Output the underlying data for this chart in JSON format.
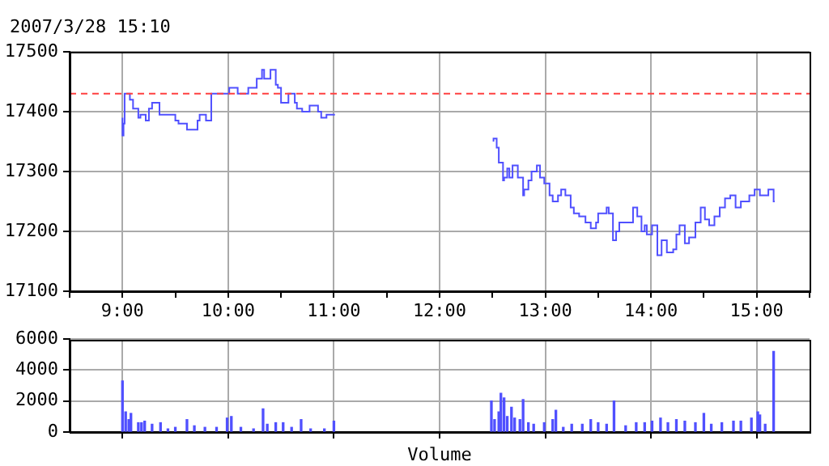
{
  "chart_data": [
    {
      "type": "step",
      "subtitle": "2007/3/28 15:10",
      "x": [
        9.0,
        9.01,
        9.02,
        9.07,
        9.1,
        9.15,
        9.17,
        9.22,
        9.25,
        9.28,
        9.35,
        9.38,
        9.45,
        9.5,
        9.53,
        9.61,
        9.71,
        9.73,
        9.79,
        9.84,
        10.01,
        10.09,
        10.19,
        10.27,
        10.32,
        10.34,
        10.4,
        10.45,
        10.47,
        10.5,
        10.52,
        10.57,
        10.63,
        10.65,
        10.7,
        10.77,
        10.85,
        10.88,
        10.93,
        11.01,
        11.75,
        12.51,
        12.54,
        12.56,
        12.6,
        12.61,
        12.64,
        12.66,
        12.69,
        12.74,
        12.79,
        12.8,
        12.84,
        12.87,
        12.92,
        12.95,
        12.99,
        13.04,
        13.07,
        13.12,
        13.15,
        13.19,
        13.24,
        13.27,
        13.32,
        13.38,
        13.43,
        13.48,
        13.5,
        13.58,
        13.6,
        13.64,
        13.67,
        13.7,
        13.76,
        13.83,
        13.87,
        13.91,
        13.94,
        13.96,
        14.01,
        14.06,
        14.1,
        14.15,
        14.21,
        14.24,
        14.27,
        14.32,
        14.36,
        14.42,
        14.47,
        14.51,
        14.55,
        14.6,
        14.65,
        14.7,
        14.75,
        14.8,
        14.85,
        14.93,
        14.98,
        15.03,
        15.11,
        15.16,
        15.17
      ],
      "series": [
        {
          "color": "#5050ff",
          "values": [
            17390,
            17360,
            17380,
            17430,
            17420,
            17405,
            17390,
            17395,
            17385,
            17405,
            17415,
            17395,
            17395,
            17395,
            17385,
            17380,
            17370,
            17385,
            17395,
            17385,
            17430,
            17440,
            17430,
            17440,
            17455,
            17470,
            17455,
            17470,
            17445,
            17440,
            17415,
            17415,
            17430,
            17415,
            17405,
            17400,
            17410,
            17400,
            17390,
            17395,
            null,
            17350,
            17355,
            17340,
            17315,
            17285,
            17290,
            17305,
            17290,
            17310,
            17290,
            17260,
            17270,
            17285,
            17300,
            17310,
            17290,
            17280,
            17260,
            17250,
            17260,
            17270,
            17260,
            17240,
            17230,
            17225,
            17215,
            17205,
            17215,
            17230,
            17240,
            17230,
            17185,
            17200,
            17215,
            17215,
            17240,
            17225,
            17200,
            17210,
            17195,
            17210,
            17160,
            17185,
            17165,
            17170,
            17195,
            17210,
            17180,
            17190,
            17215,
            17240,
            17220,
            17210,
            17225,
            17240,
            17255,
            17260,
            17240,
            17250,
            17260,
            17270,
            17260,
            17270,
            17250
          ]
        }
      ],
      "xlim": [
        8.5,
        15.5
      ],
      "ylim": [
        17100,
        17500
      ],
      "xticks": [
        {
          "value": 8.5,
          "label": null
        },
        {
          "value": 9,
          "label": "9:00"
        },
        {
          "value": 9.5,
          "label": null
        },
        {
          "value": 10,
          "label": "10:00"
        },
        {
          "value": 10.5,
          "label": null
        },
        {
          "value": 11,
          "label": "11:00"
        },
        {
          "value": 11.5,
          "label": null
        },
        {
          "value": 12,
          "label": "12:00"
        },
        {
          "value": 12.5,
          "label": null
        },
        {
          "value": 13,
          "label": "13:00"
        },
        {
          "value": 13.5,
          "label": null
        },
        {
          "value": 14,
          "label": "14:00"
        },
        {
          "value": 14.5,
          "label": null
        },
        {
          "value": 15,
          "label": "15:00"
        },
        {
          "value": 15.5,
          "label": null
        }
      ],
      "yticks": [
        17100,
        17200,
        17300,
        17400,
        17500
      ],
      "ref_lines": [
        {
          "axis": "y",
          "value": 17430,
          "color": "#ff4040",
          "line_style": "dashed"
        }
      ],
      "grid": true,
      "legend": false
    },
    {
      "type": "bar",
      "xlabel": "Volume",
      "x": [
        9.0,
        9.03,
        9.06,
        9.08,
        9.15,
        9.18,
        9.21,
        9.28,
        9.36,
        9.43,
        9.5,
        9.61,
        9.68,
        9.78,
        9.89,
        9.99,
        10.03,
        10.12,
        10.24,
        10.33,
        10.37,
        10.45,
        10.52,
        10.6,
        10.69,
        10.78,
        10.91,
        11.0,
        12.49,
        12.52,
        12.56,
        12.58,
        12.61,
        12.64,
        12.68,
        12.71,
        12.76,
        12.79,
        12.84,
        12.89,
        12.99,
        13.07,
        13.1,
        13.17,
        13.25,
        13.35,
        13.43,
        13.5,
        13.58,
        13.65,
        13.76,
        13.86,
        13.94,
        14.01,
        14.09,
        14.16,
        14.24,
        14.32,
        14.42,
        14.5,
        14.57,
        14.67,
        14.78,
        14.85,
        14.95,
        15.01,
        15.03,
        15.08,
        15.16
      ],
      "series": [
        {
          "color": "#5050ff",
          "values": [
            3300,
            1300,
            800,
            1200,
            600,
            600,
            700,
            500,
            600,
            200,
            300,
            800,
            400,
            300,
            300,
            900,
            1000,
            300,
            200,
            1500,
            500,
            600,
            600,
            300,
            800,
            200,
            200,
            700,
            2000,
            800,
            1300,
            2500,
            2200,
            1000,
            1600,
            900,
            800,
            2100,
            600,
            500,
            600,
            800,
            1400,
            300,
            500,
            500,
            800,
            600,
            500,
            2000,
            400,
            600,
            600,
            700,
            900,
            600,
            800,
            700,
            600,
            1200,
            500,
            600,
            700,
            700,
            900,
            1300,
            1100,
            500,
            5200
          ]
        }
      ],
      "xlim": [
        8.5,
        15.5
      ],
      "ylim": [
        0,
        6000
      ],
      "xticks": [
        {
          "value": 9,
          "label": null
        },
        {
          "value": 10,
          "label": null
        },
        {
          "value": 11,
          "label": null
        },
        {
          "value": 12,
          "label": null
        },
        {
          "value": 13,
          "label": null
        },
        {
          "value": 14,
          "label": null
        },
        {
          "value": 15,
          "label": null
        }
      ],
      "yticks": [
        0,
        2000,
        4000,
        6000
      ],
      "grid": true,
      "legend": false,
      "tick_labels": "y"
    }
  ]
}
